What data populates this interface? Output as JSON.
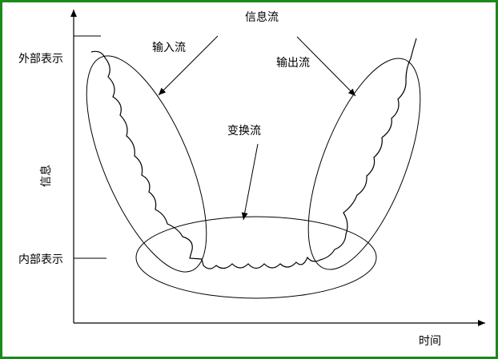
{
  "title": "信息流",
  "labels": {
    "input_flow": "输入流",
    "output_flow": "输出流",
    "transform_flow": "变换流",
    "external_repr": "外部表示",
    "internal_repr": "内部表示",
    "y_axis": "信息",
    "x_axis": "时间"
  },
  "colors": {
    "border": "#1a8a1a",
    "ink": "#000000"
  }
}
